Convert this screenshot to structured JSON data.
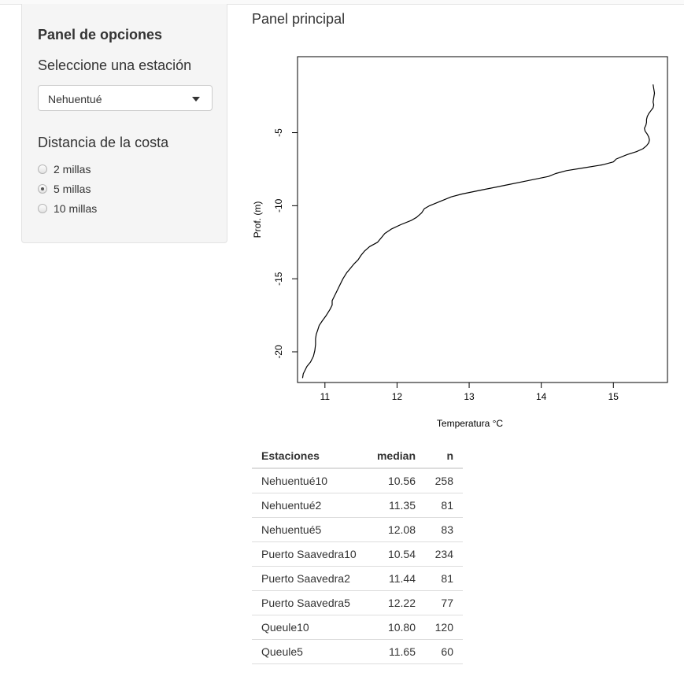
{
  "sidebar": {
    "title": "Panel de opciones",
    "select_label": "Seleccione una estación",
    "select_value": "Nehuentué",
    "distance_label": "Distancia de la costa",
    "radios": [
      {
        "label": "2 millas",
        "checked": false
      },
      {
        "label": "5 millas",
        "checked": true
      },
      {
        "label": "10 millas",
        "checked": false
      }
    ]
  },
  "main": {
    "title": "Panel principal"
  },
  "chart_data": {
    "type": "line",
    "title": "",
    "xlabel": "Temperatura °C",
    "ylabel": "Prof. (m)",
    "xlim": [
      10.62,
      15.75
    ],
    "ylim": [
      -22.1,
      0.2
    ],
    "x_ticks": [
      "11",
      "12",
      "13",
      "14",
      "15"
    ],
    "y_ticks": [
      "-5",
      "-10",
      "-15",
      "-20"
    ],
    "color": "#000000",
    "series": [
      {
        "x": [
          15.55,
          15.56,
          15.57,
          15.56,
          15.55,
          15.56,
          15.55,
          15.52,
          15.49,
          15.47,
          15.46,
          15.46,
          15.45,
          15.43,
          15.44,
          15.47,
          15.49,
          15.5,
          15.49,
          15.46,
          15.41,
          15.32,
          15.19,
          15.04,
          15.0,
          14.85,
          14.6,
          14.35,
          14.2,
          14.1,
          13.8,
          13.5,
          13.2,
          12.9,
          12.75,
          12.65,
          12.55,
          12.45,
          12.38,
          12.34,
          12.27,
          12.2,
          12.05,
          11.92,
          11.83,
          11.78,
          11.73,
          11.62,
          11.55,
          11.5,
          11.46,
          11.4,
          11.35,
          11.3,
          11.25,
          11.2,
          11.15,
          11.1,
          11.1,
          11.07,
          11.02,
          10.96,
          10.92,
          10.9,
          10.88,
          10.87,
          10.87,
          10.86,
          10.84,
          10.8,
          10.75,
          10.72,
          10.7,
          10.69
        ],
        "y": [
          -1.7,
          -2.0,
          -2.3,
          -2.6,
          -2.9,
          -3.1,
          -3.3,
          -3.5,
          -3.7,
          -3.9,
          -4.1,
          -4.3,
          -4.5,
          -4.7,
          -4.9,
          -5.1,
          -5.3,
          -5.5,
          -5.7,
          -5.9,
          -6.1,
          -6.3,
          -6.5,
          -6.8,
          -7.0,
          -7.2,
          -7.4,
          -7.6,
          -7.8,
          -8.0,
          -8.3,
          -8.6,
          -8.9,
          -9.2,
          -9.4,
          -9.6,
          -9.8,
          -10.0,
          -10.2,
          -10.5,
          -10.8,
          -11.0,
          -11.3,
          -11.6,
          -11.9,
          -12.2,
          -12.5,
          -12.8,
          -13.1,
          -13.4,
          -13.7,
          -14.0,
          -14.3,
          -14.6,
          -15.0,
          -15.5,
          -16.0,
          -16.5,
          -16.8,
          -17.1,
          -17.5,
          -17.9,
          -18.2,
          -18.5,
          -18.8,
          -19.1,
          -19.5,
          -19.9,
          -20.3,
          -20.7,
          -21.0,
          -21.3,
          -21.5,
          -21.8
        ]
      }
    ]
  },
  "table": {
    "headers": [
      "Estaciones",
      "median",
      "n"
    ],
    "rows": [
      [
        "Nehuentué10",
        "10.56",
        "258"
      ],
      [
        "Nehuentué2",
        "11.35",
        "81"
      ],
      [
        "Nehuentué5",
        "12.08",
        "83"
      ],
      [
        "Puerto Saavedra10",
        "10.54",
        "234"
      ],
      [
        "Puerto Saavedra2",
        "11.44",
        "81"
      ],
      [
        "Puerto Saavedra5",
        "12.22",
        "77"
      ],
      [
        "Queule10",
        "10.80",
        "120"
      ],
      [
        "Queule5",
        "11.65",
        "60"
      ]
    ]
  }
}
